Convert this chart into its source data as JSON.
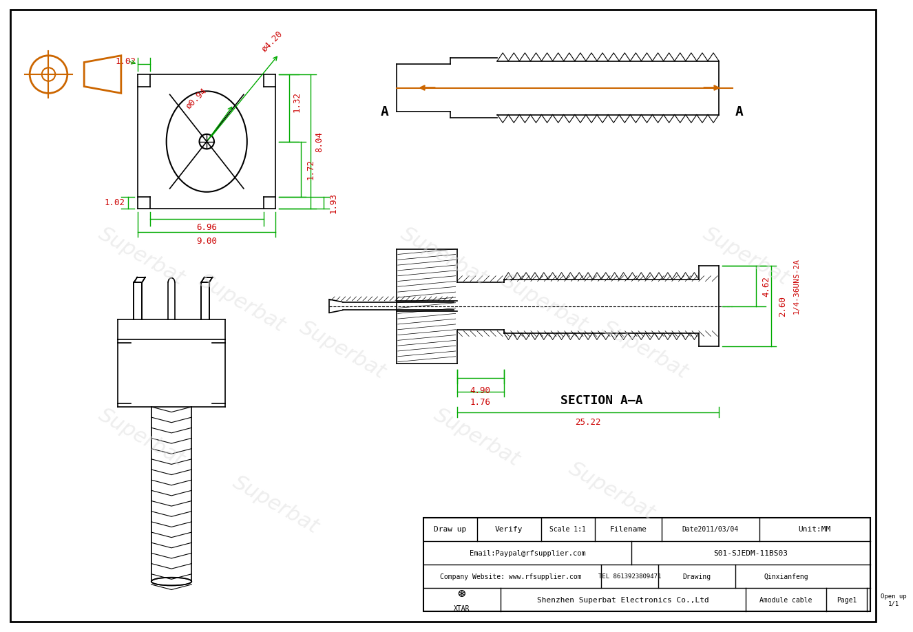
{
  "bg_color": "#ffffff",
  "border_color": "#000000",
  "dim_color": "#00aa00",
  "text_dim_color": "#cc0000",
  "orange_color": "#cc6600",
  "drawing_color": "#000000",
  "watermark_color": "#cccccc",
  "title": "",
  "dimensions": {
    "phi_094": "ø0.94",
    "phi_420": "ø4.20",
    "d102_top": "1.02",
    "d132": "1.32",
    "d172": "1.72",
    "d804": "8.04",
    "d102_bot": "1.02",
    "d696": "6.96",
    "d900": "9.00",
    "d193": "1.93",
    "d462": "4.62",
    "d260": "2.60",
    "d490": "4.90",
    "d176": "1.76",
    "d2522": "25.22",
    "d_thread": "1/4-36UNS-2A"
  },
  "table_rows": [
    [
      "Draw up",
      "Verify",
      "Scale 1:1",
      "Filename",
      "Date2011/03/04",
      "Unit:MM"
    ],
    [
      "Email:Paypal@rfsupplier.com",
      "",
      "S01-SJEDM-11BS03"
    ],
    [
      "Company Website: www.rfsupplier.com",
      "TEL 8613923809471",
      "Drawing",
      "Qinxianfeng"
    ],
    [
      "XTAR",
      "Shenzhen Superbat Electronics Co.,Ltd",
      "Amodule cable",
      "Page1",
      "Open up\n1/1"
    ]
  ],
  "section_label": "SECTION A—A",
  "watermarks": [
    "Superbat",
    "Superbat",
    "Superbat",
    "Superbat",
    "Superbat",
    "Superbat",
    "Superbat",
    "Superbat",
    "Superbat"
  ]
}
